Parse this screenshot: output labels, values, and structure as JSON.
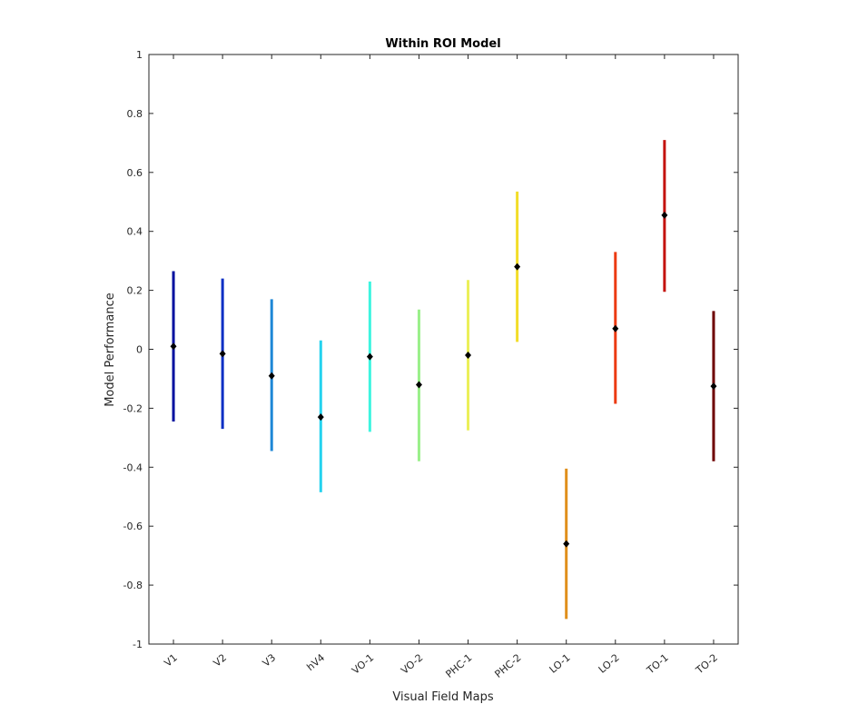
{
  "chart_data": {
    "type": "errorbar",
    "title": "Within ROI Model",
    "xlabel": "Visual Field Maps",
    "ylabel": "Model Performance",
    "ylim": [
      -1,
      1
    ],
    "yticks": [
      -1,
      -0.8,
      -0.6,
      -0.4,
      -0.2,
      0,
      0.2,
      0.4,
      0.6,
      0.8,
      1
    ],
    "ytick_labels": [
      "-1",
      "-0.8",
      "-0.6",
      "-0.4",
      "-0.2",
      "0",
      "0.2",
      "0.4",
      "0.6",
      "0.8",
      "1"
    ],
    "grid": false,
    "categories": [
      "V1",
      "V2",
      "V3",
      "hV4",
      "VO-1",
      "VO-2",
      "PHC-1",
      "PHC-2",
      "LO-1",
      "LO-2",
      "TO-1",
      "TO-2"
    ],
    "values": [
      0.01,
      -0.015,
      -0.09,
      -0.23,
      -0.025,
      -0.12,
      -0.02,
      0.28,
      -0.66,
      0.07,
      0.455,
      -0.125
    ],
    "lower": [
      -0.245,
      -0.27,
      -0.345,
      -0.485,
      -0.28,
      -0.38,
      -0.275,
      0.025,
      -0.915,
      -0.185,
      0.195,
      -0.38
    ],
    "upper": [
      0.265,
      0.24,
      0.17,
      0.03,
      0.23,
      0.135,
      0.235,
      0.535,
      -0.405,
      0.33,
      0.71,
      0.13
    ],
    "colors": [
      "#00109f",
      "#0a2fc4",
      "#1e87d6",
      "#25d2ee",
      "#3ef5e0",
      "#9af08a",
      "#ebef58",
      "#f2dd28",
      "#e08f1b",
      "#ec3a12",
      "#c4120d",
      "#6e0000"
    ],
    "marker_color": "#000000"
  }
}
